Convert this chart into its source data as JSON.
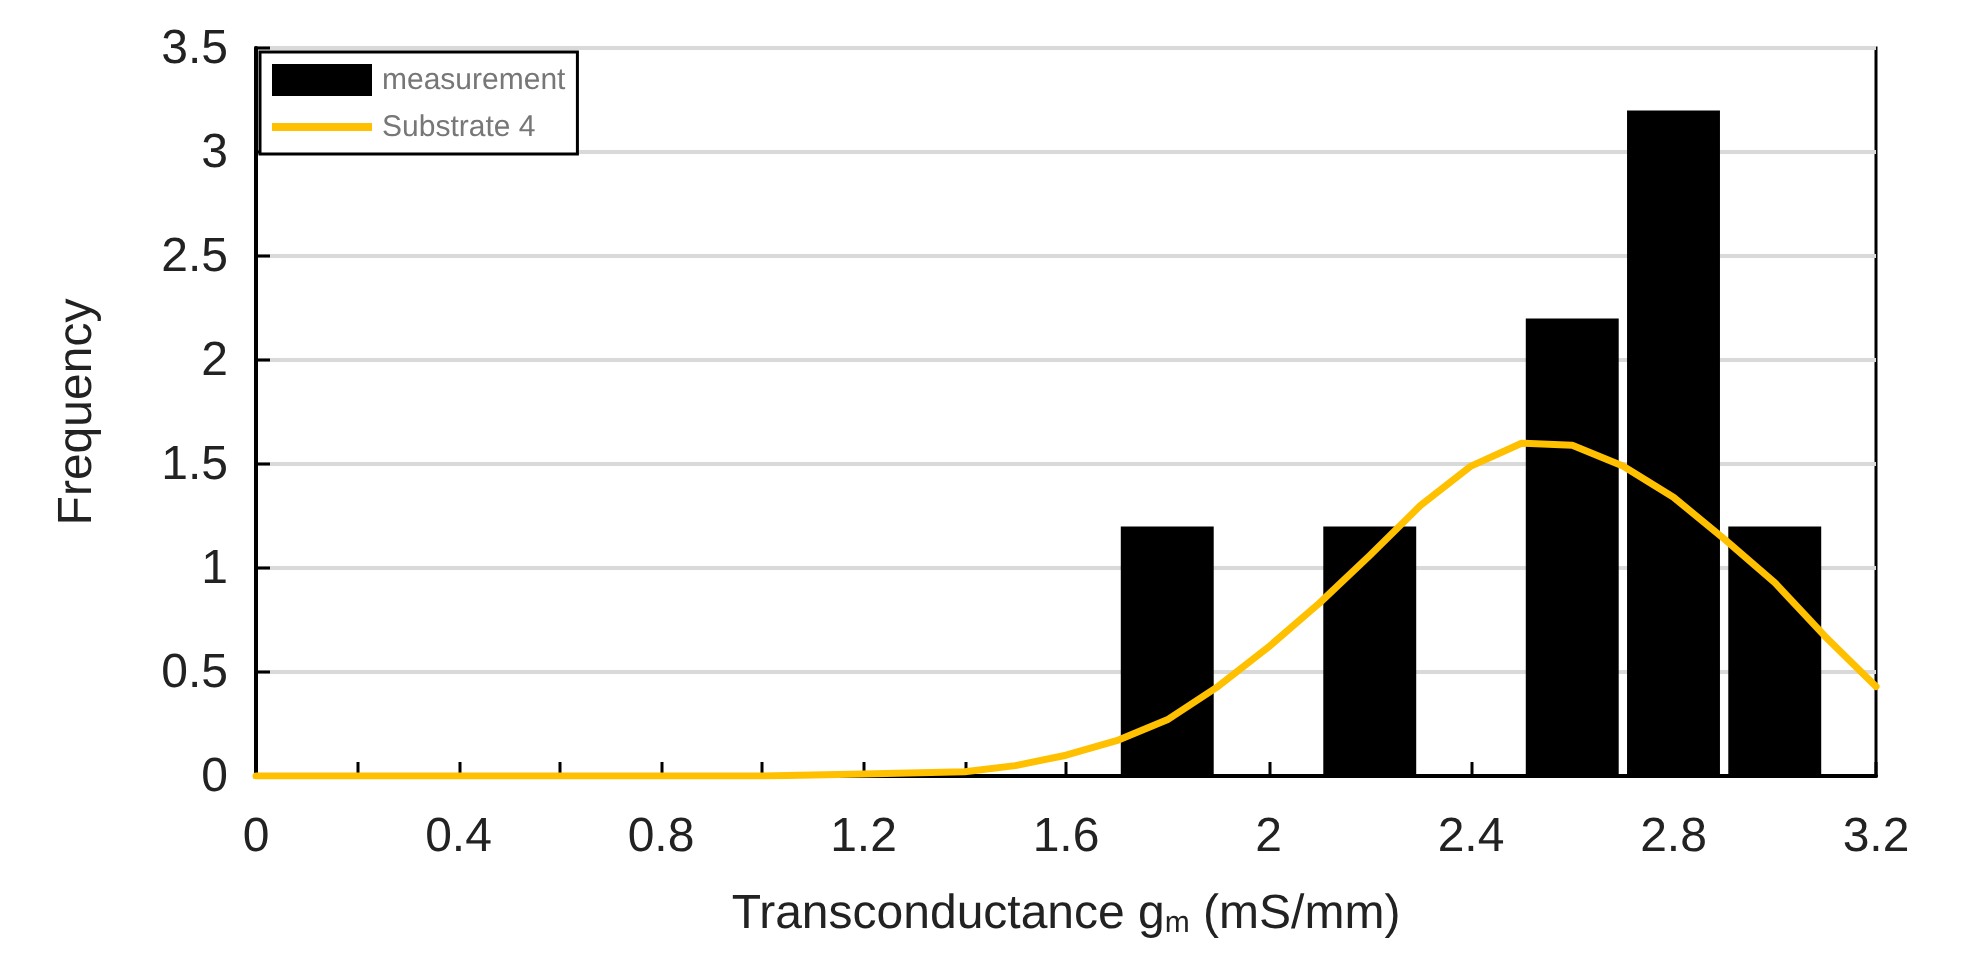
{
  "chart_data": {
    "type": "bar",
    "xlabel": "Transconductance g$_{m}$ (mS/mm)",
    "ylabel": "Frequency",
    "series": [
      {
        "name": "measurement",
        "color": "#000000",
        "x": [
          1.8,
          2.2,
          2.6,
          2.8,
          3.0
        ],
        "values": [
          1.2,
          1.2,
          2.2,
          3.2,
          1.2
        ]
      },
      {
        "name": "Substrate 4",
        "type": "line",
        "color": "#ffc000",
        "x": [
          0,
          0.4,
          0.8,
          1.0,
          1.2,
          1.4,
          1.5,
          1.6,
          1.7,
          1.8,
          1.9,
          2.0,
          2.1,
          2.2,
          2.3,
          2.4,
          2.5,
          2.6,
          2.7,
          2.8,
          2.9,
          3.0,
          3.1,
          3.2
        ],
        "values": [
          0,
          0,
          0,
          0,
          0.01,
          0.02,
          0.05,
          0.1,
          0.17,
          0.27,
          0.43,
          0.62,
          0.83,
          1.06,
          1.3,
          1.49,
          1.6,
          1.59,
          1.49,
          1.34,
          1.14,
          0.93,
          0.67,
          0.43
        ]
      }
    ],
    "xlim": [
      0,
      3.2
    ],
    "xticks": [
      0,
      {
        "value": 0.2,
        "label": null
      },
      0.4,
      {
        "value": 0.6,
        "label": null
      },
      0.8,
      {
        "value": 1.0,
        "label": null
      },
      1.2,
      {
        "value": 1.4,
        "label": null
      },
      1.6,
      {
        "value": 1.8,
        "label": null
      },
      2,
      {
        "value": 2.2,
        "label": null
      },
      2.4,
      {
        "value": 2.6,
        "label": null
      },
      2.8,
      {
        "value": 3.0,
        "label": null
      },
      3.2
    ],
    "ylim": [
      0,
      3.5
    ],
    "yticks": [
      0,
      0.5,
      1,
      1.5,
      2,
      2.5,
      3,
      3.5
    ],
    "grid": "y",
    "legend": "top left",
    "marker": "none",
    "line_style": "solid"
  }
}
